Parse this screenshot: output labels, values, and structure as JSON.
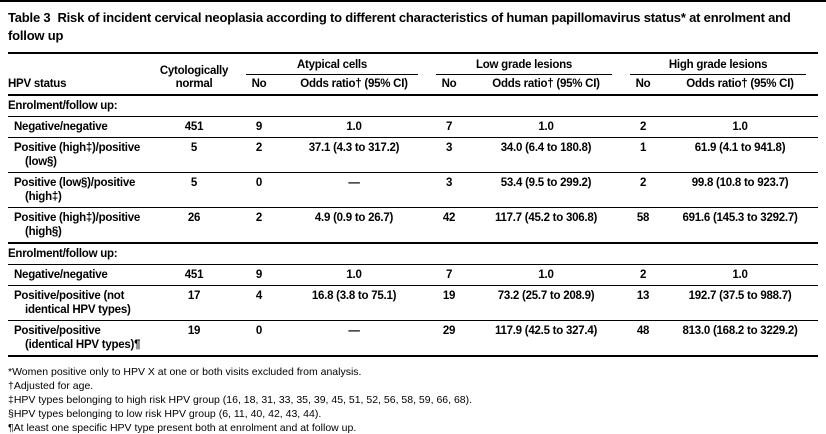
{
  "caption": {
    "label": "Table 3",
    "title": "Risk of incident cervical neoplasia according to different characteristics of human papillomavirus status* at enrolment and follow up"
  },
  "headers": {
    "hpv_status": "HPV status",
    "cytologically_normal": "Cytologically normal",
    "groups": [
      "Atypical cells",
      "Low grade lesions",
      "High grade lesions"
    ],
    "no_label": "No",
    "odds_label": "Odds ratio† (95% CI)"
  },
  "sections": [
    {
      "header": "Enrolment/follow up:",
      "rows": [
        {
          "status": [
            "Negative/negative"
          ],
          "cells": [
            "451",
            "9",
            "1.0",
            "7",
            "1.0",
            "2",
            "1.0"
          ]
        },
        {
          "status": [
            "Positive (high‡)/positive",
            "(low§)"
          ],
          "cells": [
            "5",
            "2",
            "37.1 (4.3 to 317.2)",
            "3",
            "34.0 (6.4 to 180.8)",
            "1",
            "61.9 (4.1 to 941.8)"
          ]
        },
        {
          "status": [
            "Positive (low§)/positive",
            "(high‡)"
          ],
          "cells": [
            "5",
            "0",
            "—",
            "3",
            "53.4 (9.5 to 299.2)",
            "2",
            "99.8 (10.8 to 923.7)"
          ]
        },
        {
          "status": [
            "Positive (high‡)/positive",
            "(high§)"
          ],
          "cells": [
            "26",
            "2",
            "4.9 (0.9 to 26.7)",
            "42",
            "117.7 (45.2 to 306.8)",
            "58",
            "691.6 (145.3 to 3292.7)"
          ]
        }
      ]
    },
    {
      "header": "Enrolment/follow up:",
      "rows": [
        {
          "status": [
            "Negative/negative"
          ],
          "cells": [
            "451",
            "9",
            "1.0",
            "7",
            "1.0",
            "2",
            "1.0"
          ]
        },
        {
          "status": [
            "Positive/positive (not",
            "identical HPV types)"
          ],
          "cells": [
            "17",
            "4",
            "16.8 (3.8 to 75.1)",
            "19",
            "73.2 (25.7 to 208.9)",
            "13",
            "192.7 (37.5 to 988.7)"
          ]
        },
        {
          "status": [
            "Positive/positive",
            "(identical HPV types)¶"
          ],
          "cells": [
            "19",
            "0",
            "—",
            "29",
            "117.9 (42.5 to 327.4)",
            "48",
            "813.0 (168.2 to 3229.2)"
          ]
        }
      ]
    }
  ],
  "footnotes": [
    "*Women positive only to HPV X at one or both visits excluded from analysis.",
    "†Adjusted for age.",
    "‡HPV types belonging to high risk HPV group (16, 18, 31, 33, 35, 39, 45, 51, 52, 56, 58, 59, 66, 68).",
    "§HPV types belonging to low risk HPV group (6, 11, 40, 42, 43, 44).",
    "¶At least one specific HPV type present both at enrolment and at follow up."
  ]
}
